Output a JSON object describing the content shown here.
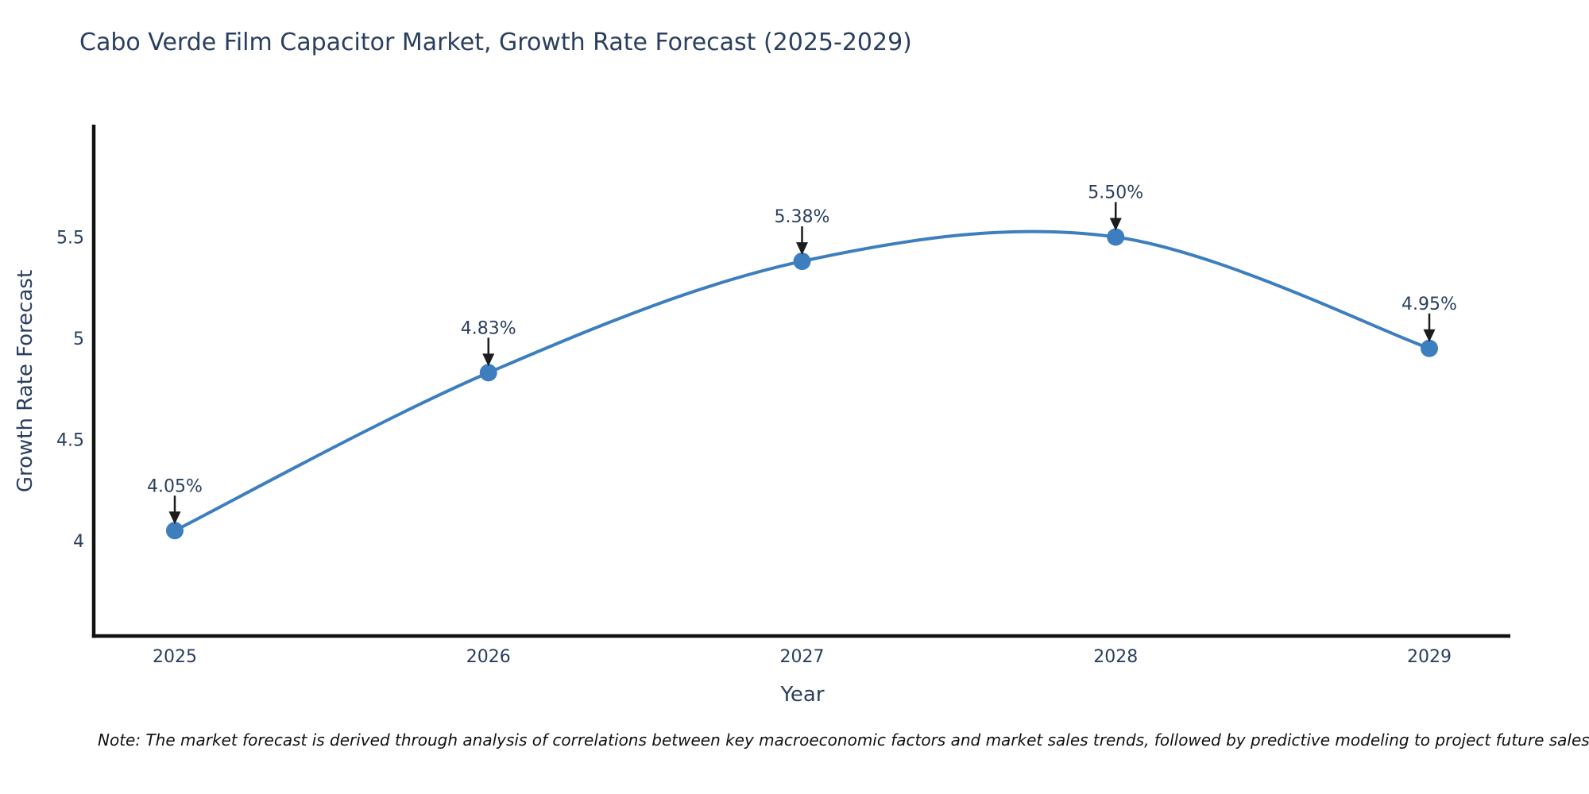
{
  "chart_data": {
    "type": "line",
    "title": "Cabo Verde Film Capacitor Market, Growth Rate Forecast (2025-2029)",
    "xlabel": "Year",
    "ylabel": "Growth Rate Forecast",
    "categories": [
      2025,
      2026,
      2027,
      2028,
      2029
    ],
    "xtick_labels": [
      "2025",
      "2026",
      "2027",
      "2028",
      "2029"
    ],
    "series": [
      {
        "name": "Growth Rate Forecast",
        "values": [
          4.05,
          4.83,
          5.38,
          5.5,
          4.95
        ],
        "point_labels": [
          "4.05%",
          "4.83%",
          "5.38%",
          "5.50%",
          "4.95%"
        ]
      }
    ],
    "yticks": [
      4,
      4.5,
      5,
      5.5
    ],
    "ytick_labels": [
      "4",
      "4.5",
      "5",
      "5.5"
    ],
    "ylim": [
      3.54,
      6.05
    ],
    "xlim": [
      2024.7,
      2029.25
    ],
    "grid": false,
    "legend": "none",
    "line_shape": "spline",
    "markers": true,
    "annotations_have_arrows": true,
    "colors": {
      "line": "#3d7ebf",
      "marker": "#3d7ebf",
      "text": "#2a3f5f",
      "arrow": "#1c1c1c",
      "axis": "#111111",
      "background": "#ffffff",
      "note_text": "#111111"
    },
    "note": "Note: The market forecast is derived through analysis of correlations between key macroeconomic factors and market sales trends, followed by predictive modeling to project future sales"
  }
}
